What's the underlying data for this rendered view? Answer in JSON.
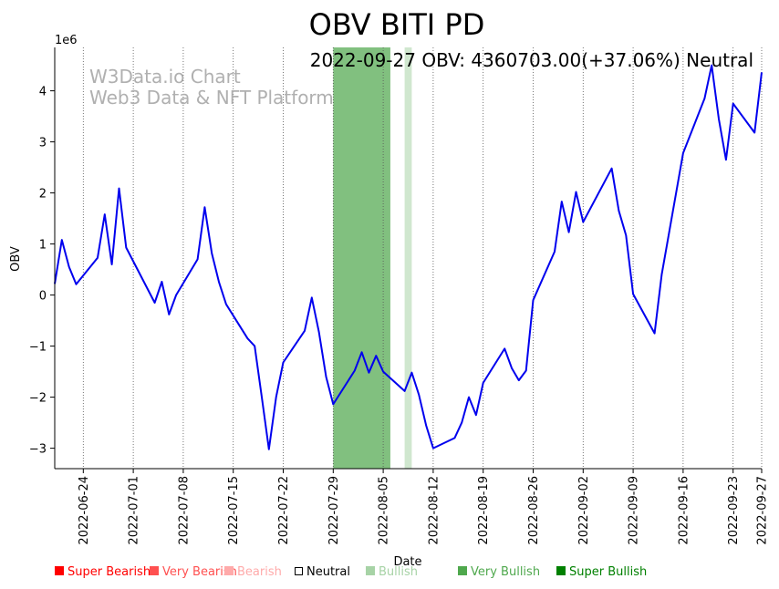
{
  "chart_data": {
    "type": "line",
    "title": "OBV BITI PD",
    "xlabel": "Date",
    "ylabel": "OBV",
    "y_multiplier": "1e6",
    "ylim": [
      -3.4,
      4.85
    ],
    "xlim": [
      "2022-06-20",
      "2022-09-27"
    ],
    "yticks": [
      -3,
      -2,
      -1,
      0,
      1,
      2,
      3,
      4
    ],
    "ytick_labels": [
      "−3",
      "−2",
      "−1",
      "0",
      "1",
      "2",
      "3",
      "4"
    ],
    "xticks": [
      "2022-06-24",
      "2022-07-01",
      "2022-07-08",
      "2022-07-15",
      "2022-07-22",
      "2022-07-29",
      "2022-08-05",
      "2022-08-12",
      "2022-08-19",
      "2022-08-26",
      "2022-09-02",
      "2022-09-09",
      "2022-09-16",
      "2022-09-23",
      "2022-09-27"
    ],
    "annotation": "2022-09-27 OBV: 4360703.00(+37.06%) Neutral",
    "watermark": [
      "W3Data.io Chart",
      "Web3 Data & NFT Platform"
    ],
    "line_color": "#0000ee",
    "series": [
      {
        "name": "OBV",
        "points": [
          [
            "2022-06-20",
            0.22
          ],
          [
            "2022-06-21",
            1.08
          ],
          [
            "2022-06-22",
            0.55
          ],
          [
            "2022-06-23",
            0.21
          ],
          [
            "2022-06-26",
            0.73
          ],
          [
            "2022-06-27",
            1.58
          ],
          [
            "2022-06-28",
            0.6
          ],
          [
            "2022-06-29",
            2.09
          ],
          [
            "2022-06-30",
            0.93
          ],
          [
            "2022-07-04",
            -0.15
          ],
          [
            "2022-07-05",
            0.26
          ],
          [
            "2022-07-06",
            -0.38
          ],
          [
            "2022-07-07",
            0.0
          ],
          [
            "2022-07-10",
            0.7
          ],
          [
            "2022-07-11",
            1.72
          ],
          [
            "2022-07-12",
            0.82
          ],
          [
            "2022-07-13",
            0.25
          ],
          [
            "2022-07-14",
            -0.18
          ],
          [
            "2022-07-17",
            -0.85
          ],
          [
            "2022-07-18",
            -1.0
          ],
          [
            "2022-07-19",
            -2.0
          ],
          [
            "2022-07-20",
            -3.02
          ],
          [
            "2022-07-21",
            -2.0
          ],
          [
            "2022-07-22",
            -1.32
          ],
          [
            "2022-07-25",
            -0.7
          ],
          [
            "2022-07-26",
            -0.05
          ],
          [
            "2022-07-27",
            -0.72
          ],
          [
            "2022-07-28",
            -1.6
          ],
          [
            "2022-07-29",
            -2.14
          ],
          [
            "2022-08-01",
            -1.48
          ],
          [
            "2022-08-02",
            -1.12
          ],
          [
            "2022-08-03",
            -1.52
          ],
          [
            "2022-08-04",
            -1.19
          ],
          [
            "2022-08-05",
            -1.5
          ],
          [
            "2022-08-08",
            -1.88
          ],
          [
            "2022-08-09",
            -1.52
          ],
          [
            "2022-08-10",
            -1.95
          ],
          [
            "2022-08-11",
            -2.55
          ],
          [
            "2022-08-12",
            -3.0
          ],
          [
            "2022-08-15",
            -2.8
          ],
          [
            "2022-08-16",
            -2.5
          ],
          [
            "2022-08-17",
            -2.0
          ],
          [
            "2022-08-18",
            -2.35
          ],
          [
            "2022-08-19",
            -1.72
          ],
          [
            "2022-08-22",
            -1.05
          ],
          [
            "2022-08-23",
            -1.43
          ],
          [
            "2022-08-24",
            -1.67
          ],
          [
            "2022-08-25",
            -1.48
          ],
          [
            "2022-08-26",
            -0.1
          ],
          [
            "2022-08-29",
            0.85
          ],
          [
            "2022-08-30",
            1.83
          ],
          [
            "2022-08-31",
            1.23
          ],
          [
            "2022-09-01",
            2.02
          ],
          [
            "2022-09-02",
            1.43
          ],
          [
            "2022-09-06",
            2.48
          ],
          [
            "2022-09-07",
            1.65
          ],
          [
            "2022-09-08",
            1.17
          ],
          [
            "2022-09-09",
            0.02
          ],
          [
            "2022-09-12",
            -0.75
          ],
          [
            "2022-09-13",
            0.4
          ],
          [
            "2022-09-16",
            2.78
          ],
          [
            "2022-09-19",
            3.85
          ],
          [
            "2022-09-20",
            4.5
          ],
          [
            "2022-09-21",
            3.45
          ],
          [
            "2022-09-22",
            2.65
          ],
          [
            "2022-09-23",
            3.75
          ],
          [
            "2022-09-26",
            3.18
          ],
          [
            "2022-09-27",
            4.36
          ]
        ]
      }
    ],
    "shaded_regions": [
      {
        "start": "2022-07-29",
        "end": "2022-08-06",
        "category": "Very Bullish",
        "color": "#81c07f"
      },
      {
        "start": "2022-08-08",
        "end": "2022-08-09",
        "category": "Bullish",
        "color": "#d0e7cf"
      }
    ]
  },
  "legend": [
    {
      "label": "Super Bearish",
      "color": "#ff0000"
    },
    {
      "label": "Very Bearish",
      "color": "#ff5050"
    },
    {
      "label": "Bearish",
      "color": "#ffaaaa"
    },
    {
      "label": "Neutral",
      "color": "#000000"
    },
    {
      "label": "Bullish",
      "color": "#a7d3a6"
    },
    {
      "label": "Very Bullish",
      "color": "#4fa84d"
    },
    {
      "label": "Super Bullish",
      "color": "#008000"
    }
  ]
}
